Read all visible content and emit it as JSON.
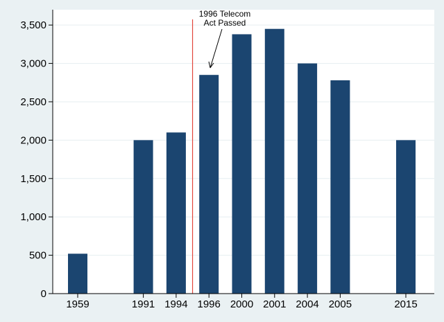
{
  "chart_data": {
    "type": "bar",
    "categories": [
      "1959",
      "1991",
      "1994",
      "1996",
      "2000",
      "2001",
      "2004",
      "2005",
      "2015"
    ],
    "x": [
      1959,
      1991,
      1994,
      1996,
      2000,
      2001,
      2004,
      2005,
      2015
    ],
    "values": [
      520,
      2000,
      2100,
      2850,
      3380,
      3450,
      3000,
      2780,
      2000
    ],
    "title": "",
    "xlabel": "",
    "ylabel": "",
    "ylim": [
      0,
      3700
    ],
    "yticks": [
      0,
      500,
      1000,
      1500,
      2000,
      2500,
      3000,
      3500
    ],
    "ytick_labels": [
      "0",
      "500",
      "1,000",
      "1,500",
      "2,000",
      "2,500",
      "3,000",
      "3,500"
    ],
    "grid": "horizontal",
    "bar_color": "#1b4570",
    "reference_line": {
      "after_category": "1994",
      "color": "#e2463c"
    },
    "annotation": {
      "lines": [
        "1996 Telecom",
        "Act Passed"
      ],
      "points_to": "1996"
    }
  }
}
